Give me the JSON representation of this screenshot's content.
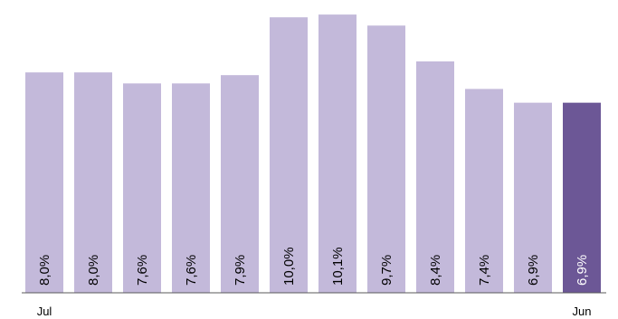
{
  "chart_data": {
    "type": "bar",
    "categories": [
      "Jul",
      "",
      "",
      "",
      "",
      "",
      "",
      "",
      "",
      "",
      "",
      "Jun"
    ],
    "values": [
      8.0,
      8.0,
      7.6,
      7.6,
      7.9,
      10.0,
      10.1,
      9.7,
      8.4,
      7.4,
      6.9,
      6.9
    ],
    "data_labels": [
      "8,0%",
      "8,0%",
      "7,6%",
      "7,6%",
      "7,9%",
      "10,0%",
      "10,1%",
      "9,7%",
      "8,4%",
      "7,4%",
      "6,9%",
      "6,9%"
    ],
    "highlight_index": 11,
    "colors": {
      "bar": "#c3b9da",
      "highlight": "#6c5796",
      "axis": "#595959",
      "label_dark": "#000000",
      "label_light": "#ffffff"
    },
    "ylim": [
      0,
      10.3
    ],
    "title": "",
    "xlabel": "",
    "ylabel": "",
    "grid": false,
    "legend": "none"
  }
}
